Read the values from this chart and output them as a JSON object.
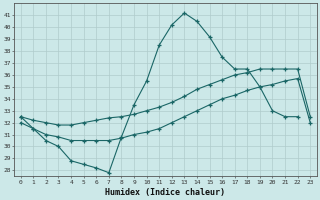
{
  "xlabel": "Humidex (Indice chaleur)",
  "bg_color": "#cce8e8",
  "grid_color": "#b0cccc",
  "line_color": "#1a6666",
  "xlim": [
    -0.5,
    23.5
  ],
  "ylim": [
    27.5,
    42.0
  ],
  "xticks": [
    0,
    1,
    2,
    3,
    4,
    5,
    6,
    7,
    8,
    9,
    10,
    11,
    12,
    13,
    14,
    15,
    16,
    17,
    18,
    19,
    20,
    21,
    22,
    23
  ],
  "yticks": [
    28,
    29,
    30,
    31,
    32,
    33,
    34,
    35,
    36,
    37,
    38,
    39,
    40,
    41
  ],
  "line1_x": [
    0,
    1,
    2,
    3,
    4,
    5,
    6,
    7,
    8,
    9,
    10,
    11,
    12,
    13,
    14,
    15,
    16,
    17,
    18,
    19,
    20,
    21,
    22
  ],
  "line1_y": [
    32.5,
    31.5,
    30.5,
    30.0,
    28.8,
    28.5,
    28.2,
    27.8,
    30.8,
    33.5,
    35.5,
    38.5,
    40.2,
    41.2,
    40.5,
    39.2,
    37.5,
    36.5,
    36.5,
    35.0,
    33.0,
    32.5,
    32.5
  ],
  "line2_x": [
    0,
    1,
    2,
    3,
    4,
    5,
    6,
    7,
    8,
    9,
    10,
    11,
    12,
    13,
    14,
    15,
    16,
    17,
    18,
    19,
    20,
    21,
    22,
    23
  ],
  "line2_y": [
    32.5,
    32.2,
    32.0,
    31.8,
    31.8,
    32.0,
    32.2,
    32.4,
    32.5,
    32.7,
    33.0,
    33.3,
    33.7,
    34.2,
    34.8,
    35.2,
    35.6,
    36.0,
    36.2,
    36.5,
    36.5,
    36.5,
    36.5,
    32.5
  ],
  "line3_x": [
    0,
    1,
    2,
    3,
    4,
    5,
    6,
    7,
    8,
    9,
    10,
    11,
    12,
    13,
    14,
    15,
    16,
    17,
    18,
    19,
    20,
    21,
    22,
    23
  ],
  "line3_y": [
    32.0,
    31.5,
    31.0,
    30.8,
    30.5,
    30.5,
    30.5,
    30.5,
    30.7,
    31.0,
    31.2,
    31.5,
    32.0,
    32.5,
    33.0,
    33.5,
    34.0,
    34.3,
    34.7,
    35.0,
    35.2,
    35.5,
    35.7,
    32.0
  ]
}
